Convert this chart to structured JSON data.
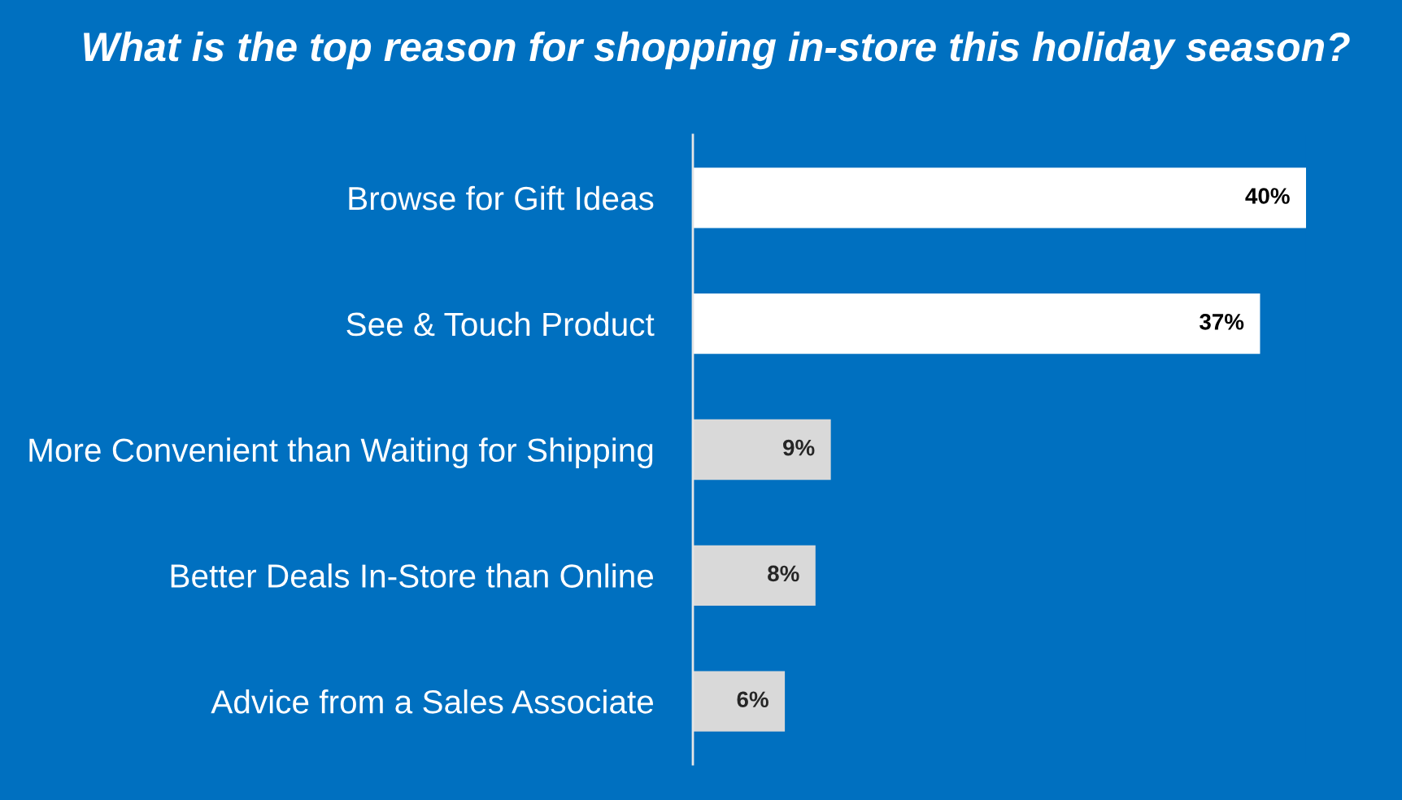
{
  "chart_data": {
    "type": "bar",
    "orientation": "horizontal",
    "title": "What is the top reason for shopping in-store this holiday season?",
    "categories": [
      "Browse for Gift Ideas",
      "See & Touch Product",
      "More Convenient than Waiting for Shipping",
      "Better Deals In-Store than Online",
      "Advice from a Sales Associate"
    ],
    "values": [
      40,
      37,
      9,
      8,
      6
    ],
    "value_labels": [
      "40%",
      "37%",
      "9%",
      "8%",
      "6%"
    ],
    "colors": [
      "#ffffff",
      "#ffffff",
      "#d9d9d9",
      "#d9d9d9",
      "#d9d9d9"
    ]
  }
}
